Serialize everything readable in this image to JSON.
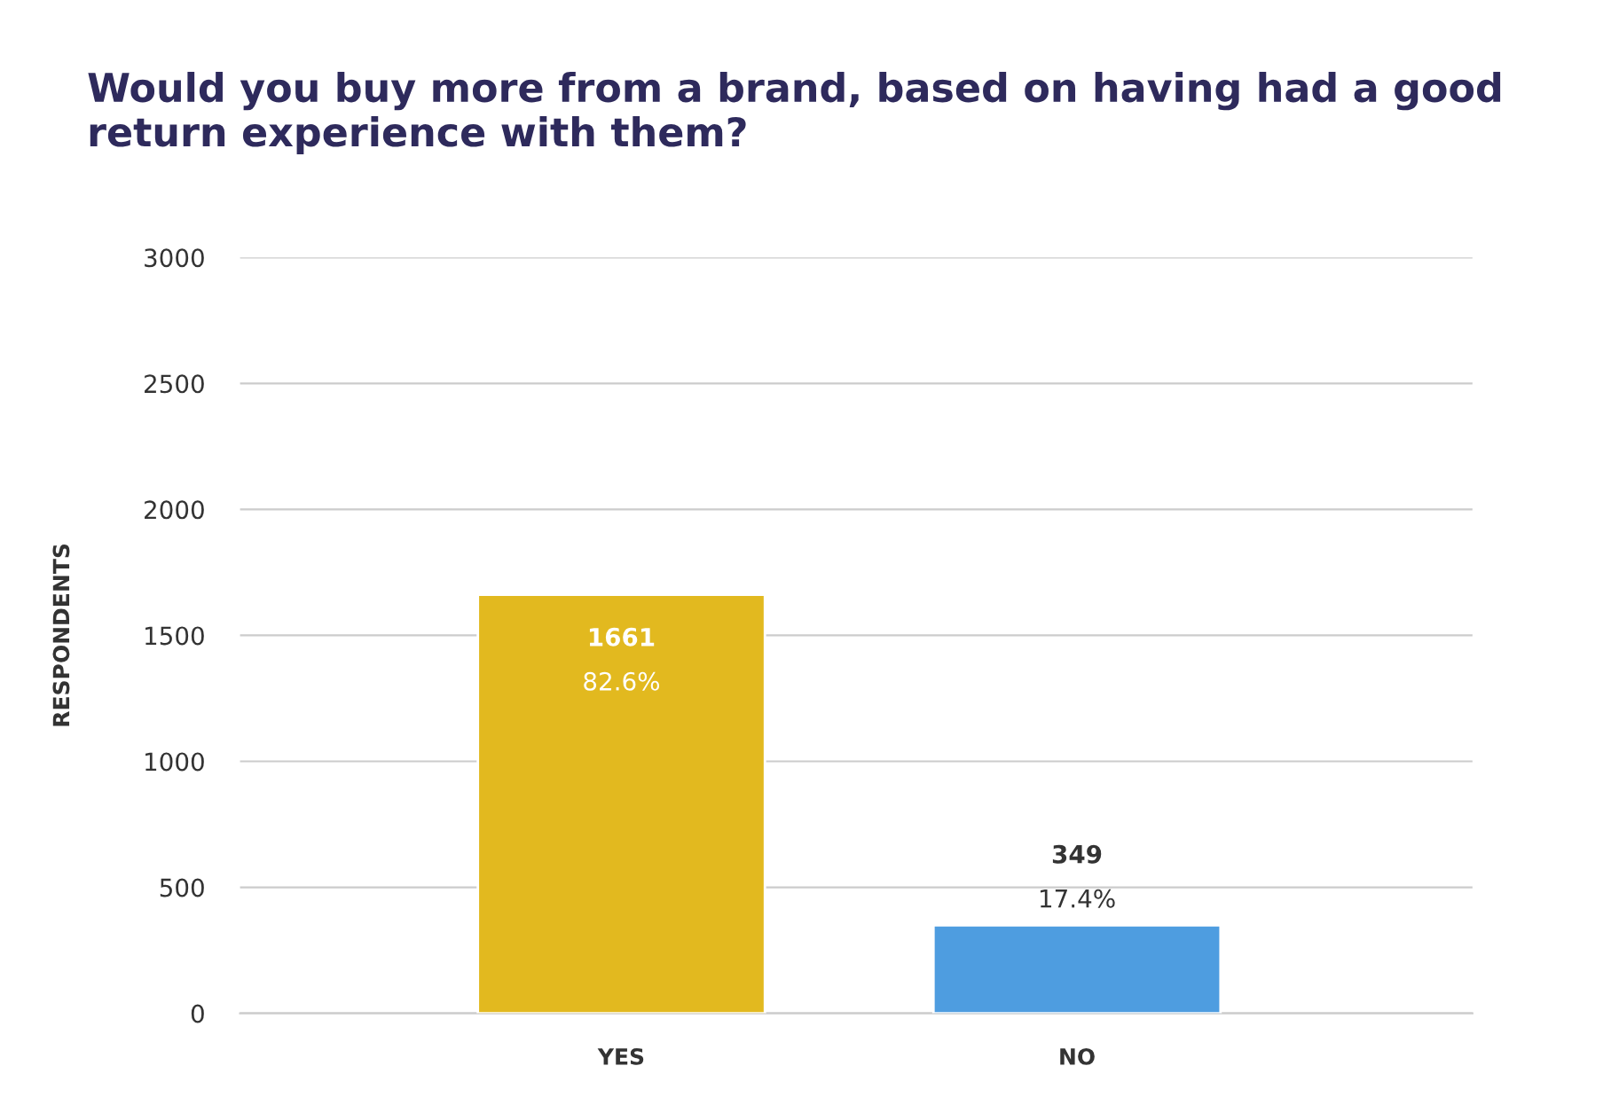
{
  "chart_data": {
    "type": "bar",
    "title": "Would you buy more from a brand, based on having had a good return experience with them?",
    "ylabel": "RESPONDENTS",
    "categories": [
      "YES",
      "NO"
    ],
    "values": [
      1661,
      349
    ],
    "colors": [
      "#e2b91f",
      "#4e9de0"
    ],
    "value_labels": [
      "1661\n82.6%",
      "349\n17.4%"
    ],
    "ylim": [
      0,
      3000
    ],
    "yticks": [
      0,
      500,
      1000,
      1500,
      2000,
      2500,
      3000
    ],
    "grid": "y"
  }
}
